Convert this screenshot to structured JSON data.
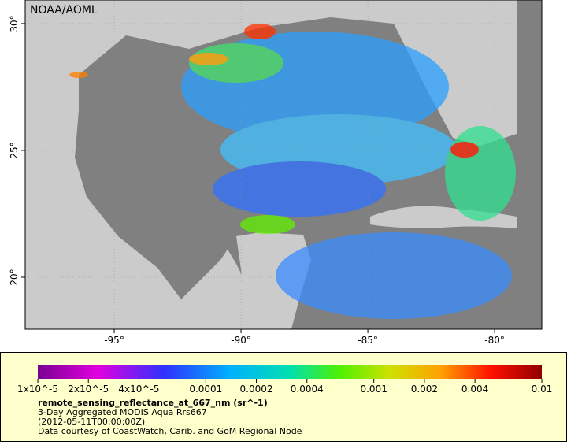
{
  "map": {
    "corner_label": "NOAA/AOML",
    "xlim": [
      -98.51,
      -78.14
    ],
    "ylim": [
      17.95,
      30.93
    ],
    "xticks": [
      {
        "value": -95,
        "label": "-95°"
      },
      {
        "value": -90,
        "label": "-90°"
      },
      {
        "value": -85,
        "label": "-85°"
      },
      {
        "value": -80,
        "label": "-80°"
      }
    ],
    "yticks": [
      {
        "value": 30,
        "label": "30°"
      },
      {
        "value": 25,
        "label": "25°"
      },
      {
        "value": 20,
        "label": "20°"
      }
    ]
  },
  "colorbar": {
    "log_scale": true,
    "lim": [
      1e-05,
      0.01
    ],
    "ticks": [
      {
        "value": 1e-05,
        "label": "1x10^-5"
      },
      {
        "value": 2e-05,
        "label": "2x10^-5"
      },
      {
        "value": 4e-05,
        "label": "4x10^-5"
      },
      {
        "value": 0.0001,
        "label": "0.0001"
      },
      {
        "value": 0.0002,
        "label": "0.0002"
      },
      {
        "value": 0.0004,
        "label": "0.0004"
      },
      {
        "value": 0.001,
        "label": "0.001"
      },
      {
        "value": 0.002,
        "label": "0.002"
      },
      {
        "value": 0.004,
        "label": "0.004"
      },
      {
        "value": 0.01,
        "label": "0.01"
      }
    ],
    "variable": "remote_sensing_reflectance_at_667_nm (sr^-1)",
    "lines": [
      "3-Day Aggregated MODIS Aqua Rrs667",
      "(2012-05-11T00:00:00Z)",
      "Data courtesy of CoastWatch, Carib. and GoM Regional Node"
    ]
  }
}
